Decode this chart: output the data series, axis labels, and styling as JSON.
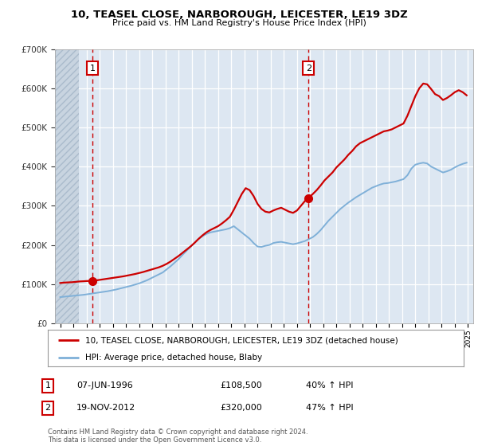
{
  "title": "10, TEASEL CLOSE, NARBOROUGH, LEICESTER, LE19 3DZ",
  "subtitle": "Price paid vs. HM Land Registry's House Price Index (HPI)",
  "line1_color": "#cc0000",
  "line2_color": "#7fb0d8",
  "hatch_color": "#c8d4e0",
  "plot_bg_color": "#dde7f2",
  "legend_line1": "10, TEASEL CLOSE, NARBOROUGH, LEICESTER, LE19 3DZ (detached house)",
  "legend_line2": "HPI: Average price, detached house, Blaby",
  "table_row1": [
    "1",
    "07-JUN-1996",
    "£108,500",
    "40% ↑ HPI"
  ],
  "table_row2": [
    "2",
    "19-NOV-2012",
    "£320,000",
    "47% ↑ HPI"
  ],
  "footnote": "Contains HM Land Registry data © Crown copyright and database right 2024.\nThis data is licensed under the Open Government Licence v3.0.",
  "ylim": [
    0,
    700000
  ],
  "xlim_left": 1993.6,
  "xlim_right": 2025.4,
  "hatch_end": 1995.4,
  "vline1_x": 1996.44,
  "vline2_x": 2012.88,
  "marker1_y": 108500,
  "marker2_y": 320000,
  "red_years": [
    1994.0,
    1994.3,
    1994.6,
    1994.9,
    1995.2,
    1995.5,
    1995.8,
    1996.0,
    1996.44,
    1996.7,
    1997.0,
    1997.3,
    1997.6,
    1997.9,
    1998.2,
    1998.5,
    1998.8,
    1999.1,
    1999.4,
    1999.7,
    2000.0,
    2000.3,
    2000.6,
    2000.9,
    2001.2,
    2001.5,
    2001.8,
    2002.1,
    2002.4,
    2002.7,
    2003.0,
    2003.3,
    2003.6,
    2003.9,
    2004.2,
    2004.5,
    2004.8,
    2005.1,
    2005.4,
    2005.7,
    2006.0,
    2006.3,
    2006.6,
    2006.9,
    2007.2,
    2007.5,
    2007.8,
    2008.1,
    2008.4,
    2008.7,
    2009.0,
    2009.3,
    2009.6,
    2009.9,
    2010.2,
    2010.5,
    2010.8,
    2011.1,
    2011.4,
    2011.7,
    2012.0,
    2012.3,
    2012.6,
    2012.88,
    2013.2,
    2013.5,
    2013.8,
    2014.1,
    2014.4,
    2014.7,
    2015.0,
    2015.3,
    2015.6,
    2015.9,
    2016.2,
    2016.5,
    2016.8,
    2017.1,
    2017.4,
    2017.7,
    2018.0,
    2018.3,
    2018.6,
    2018.9,
    2019.2,
    2019.5,
    2019.8,
    2020.1,
    2020.4,
    2020.7,
    2021.0,
    2021.3,
    2021.6,
    2021.9,
    2022.2,
    2022.5,
    2022.8,
    2023.1,
    2023.4,
    2023.7,
    2024.0,
    2024.3,
    2024.6,
    2024.9
  ],
  "red_values": [
    103000,
    104000,
    104500,
    105000,
    106000,
    107000,
    107500,
    108000,
    108500,
    109500,
    111000,
    112500,
    114000,
    115500,
    117000,
    118500,
    120000,
    122000,
    124000,
    126000,
    128500,
    131000,
    134000,
    137000,
    140000,
    143000,
    147000,
    152000,
    158000,
    165000,
    172000,
    180000,
    188000,
    196000,
    205000,
    215000,
    224000,
    232000,
    238000,
    243000,
    248000,
    255000,
    263000,
    272000,
    290000,
    310000,
    330000,
    345000,
    340000,
    325000,
    305000,
    292000,
    285000,
    283000,
    288000,
    292000,
    295000,
    290000,
    285000,
    282000,
    288000,
    300000,
    312000,
    320000,
    330000,
    340000,
    352000,
    365000,
    375000,
    385000,
    398000,
    408000,
    418000,
    430000,
    440000,
    452000,
    460000,
    465000,
    470000,
    475000,
    480000,
    485000,
    490000,
    492000,
    495000,
    500000,
    505000,
    510000,
    530000,
    555000,
    580000,
    600000,
    612000,
    610000,
    598000,
    585000,
    580000,
    570000,
    575000,
    582000,
    590000,
    595000,
    590000,
    582000
  ],
  "blue_years": [
    1994.0,
    1994.3,
    1994.6,
    1994.9,
    1995.2,
    1995.5,
    1995.8,
    1996.1,
    1996.4,
    1996.7,
    1997.0,
    1997.3,
    1997.6,
    1997.9,
    1998.2,
    1998.5,
    1998.8,
    1999.1,
    1999.4,
    1999.7,
    2000.0,
    2000.3,
    2000.6,
    2000.9,
    2001.2,
    2001.5,
    2001.8,
    2002.1,
    2002.4,
    2002.7,
    2003.0,
    2003.3,
    2003.6,
    2003.9,
    2004.2,
    2004.5,
    2004.8,
    2005.1,
    2005.4,
    2005.7,
    2006.0,
    2006.3,
    2006.6,
    2006.9,
    2007.2,
    2007.5,
    2007.8,
    2008.1,
    2008.4,
    2008.7,
    2009.0,
    2009.3,
    2009.6,
    2009.9,
    2010.2,
    2010.5,
    2010.8,
    2011.1,
    2011.4,
    2011.7,
    2012.0,
    2012.3,
    2012.6,
    2012.9,
    2013.2,
    2013.5,
    2013.8,
    2014.1,
    2014.4,
    2014.7,
    2015.0,
    2015.3,
    2015.6,
    2015.9,
    2016.2,
    2016.5,
    2016.8,
    2017.1,
    2017.4,
    2017.7,
    2018.0,
    2018.3,
    2018.6,
    2018.9,
    2019.2,
    2019.5,
    2019.8,
    2020.1,
    2020.4,
    2020.7,
    2021.0,
    2021.3,
    2021.6,
    2021.9,
    2022.2,
    2022.5,
    2022.8,
    2023.1,
    2023.4,
    2023.7,
    2024.0,
    2024.3,
    2024.6,
    2024.9
  ],
  "blue_values": [
    67000,
    68000,
    69000,
    70000,
    71000,
    72000,
    73000,
    74500,
    76000,
    77500,
    79000,
    80500,
    82000,
    84000,
    86000,
    88500,
    91000,
    93500,
    96000,
    99000,
    102000,
    106000,
    110000,
    115000,
    120000,
    125000,
    130000,
    138000,
    146000,
    155000,
    164000,
    175000,
    185000,
    195000,
    205000,
    215000,
    222000,
    228000,
    232000,
    234000,
    236000,
    238000,
    240000,
    243000,
    248000,
    240000,
    232000,
    224000,
    216000,
    205000,
    196000,
    195000,
    198000,
    200000,
    205000,
    207000,
    208000,
    206000,
    204000,
    202000,
    204000,
    207000,
    210000,
    215000,
    220000,
    228000,
    238000,
    250000,
    262000,
    272000,
    282000,
    292000,
    300000,
    308000,
    315000,
    322000,
    328000,
    334000,
    340000,
    346000,
    350000,
    354000,
    357000,
    358000,
    360000,
    362000,
    365000,
    368000,
    378000,
    395000,
    405000,
    408000,
    410000,
    408000,
    400000,
    395000,
    390000,
    385000,
    388000,
    392000,
    398000,
    403000,
    407000,
    410000
  ]
}
